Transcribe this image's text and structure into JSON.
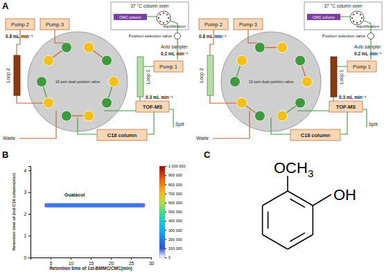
{
  "panel_labels": [
    "A",
    "B",
    "C"
  ],
  "diagram": {
    "panels": [
      {
        "oven": "37 °C column oven",
        "column": "CMC column",
        "equilibration": "equilibration",
        "selection_valve": "Position selection valve",
        "pump_2": "Pump 2",
        "pump_3": "Pump 3",
        "pump_1": "Pump 1",
        "pump_flow": "0.8 mL min⁻¹",
        "autosampler": "Auto sampler",
        "autosampler_flow": "0.2 mL min⁻¹",
        "valve": "10-port dual-position valve",
        "loop_2": "Loop 2",
        "loop_1": "Loop 1",
        "active_loop": "Loop 2",
        "ms": "TOF-MS",
        "ms_flow": "0.3 mL min⁻¹",
        "split": "Split",
        "c18": "C18 column",
        "waste": "Waste"
      },
      {
        "oven": "37 °C column oven",
        "column": "CMC column",
        "equilibration": "equilibration",
        "selection_valve": "Position selection valve",
        "pump_2": "Pump 2",
        "pump_3": "Pump 3",
        "pump_1": "Pump 1",
        "pump_flow": "0.8 mL min⁻¹",
        "autosampler": "Auto sampler",
        "autosampler_flow": "0.2 mL min⁻¹",
        "valve": "10-port dual-position valve",
        "loop_2": "Loop 2",
        "loop_1": "Loop 1",
        "active_loop": "Loop 1",
        "ms": "TOF-MS",
        "ms_flow": "0.3 mL min⁻¹",
        "split": "Split",
        "c18": "C18 column",
        "waste": "Waste"
      }
    ]
  },
  "chart_data": {
    "type": "heatmap",
    "xlabel": "Retention time of 1st-BMMC/CMC(min)",
    "ylabel": "Retention time of 2nd-C18 column(min)",
    "xlim": [
      0,
      30
    ],
    "xticks": [
      5,
      10,
      15,
      20,
      25,
      30
    ],
    "ylim": [
      0,
      4.2
    ],
    "yticks": [
      0,
      1,
      2,
      3,
      4
    ],
    "cells": [
      {
        "x": [
          3.5,
          28.5
        ],
        "y": [
          2.3,
          2.5
        ],
        "value": 80000
      },
      {
        "x": [
          4.5,
          27.5
        ],
        "y": [
          2.36,
          2.44
        ],
        "value": 200000
      }
    ],
    "colorbar": {
      "range": [
        0,
        1000000
      ],
      "ticks": [
        0,
        {
          "value": 100000,
          "label": "100 000"
        },
        {
          "value": 200000,
          "label": "200 000"
        },
        {
          "value": 300000,
          "label": "300 000"
        },
        {
          "value": 400000,
          "label": "400 000"
        },
        {
          "value": 500000,
          "label": "500 000"
        },
        {
          "value": 600000,
          "label": "600 000"
        },
        {
          "value": 700000,
          "label": "700 000"
        },
        {
          "value": 800000,
          "label": "800 000"
        },
        {
          "value": 900000,
          "label": "900 000"
        },
        {
          "value": 1000000,
          "label": "1 000 000"
        }
      ]
    },
    "annotations": [
      {
        "text": "Guaiacol",
        "x": 11,
        "y": 2.8
      }
    ]
  },
  "structure": {
    "methoxy": "OCH",
    "methoxy_subscript": "3",
    "hydroxyl": "OH"
  }
}
